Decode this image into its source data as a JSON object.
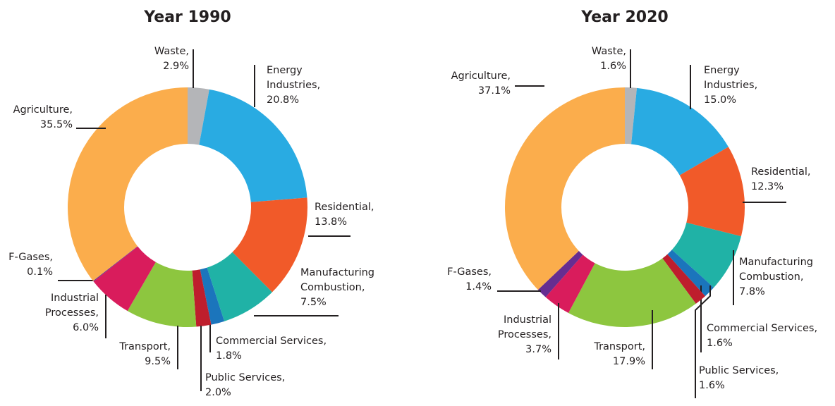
{
  "chart_data": [
    {
      "type": "pie",
      "title": "Year 1990",
      "categories": [
        "Waste,",
        "Energy Industries,",
        "Residential,",
        "Manufacturing Combustion,",
        "Commercial Services,",
        "Public Services,",
        "Transport,",
        "Industrial Processes,",
        "F-Gases,",
        "Agriculture,"
      ],
      "values": [
        2.9,
        20.8,
        13.8,
        7.5,
        1.8,
        2.0,
        9.5,
        6.0,
        0.1,
        35.5
      ],
      "value_labels": [
        "2.9%",
        "20.8%",
        "13.8%",
        "7.5%",
        "1.8%",
        "2.0%",
        "9.5%",
        "6.0%",
        "0.1%",
        "35.5%"
      ],
      "colors": [
        "#b4b5b8",
        "#29abe2",
        "#f15a29",
        "#20b2a6",
        "#1b75bc",
        "#be1e2d",
        "#8dc63f",
        "#d91c5c",
        "#662d91",
        "#fbad4c"
      ]
    },
    {
      "type": "pie",
      "title": "Year 2020",
      "categories": [
        "Waste,",
        "Energy Industries,",
        "Residential,",
        "Manufacturing Combustion,",
        "Commercial Services,",
        "Public Services,",
        "Transport,",
        "Industrial Processes,",
        "F-Gases,",
        "Agriculture,"
      ],
      "values": [
        1.6,
        15.0,
        12.3,
        7.8,
        1.6,
        1.6,
        17.9,
        3.7,
        1.4,
        37.1
      ],
      "value_labels": [
        "1.6%",
        "15.0%",
        "12.3%",
        "7.8%",
        "1.6%",
        "1.6%",
        "17.9%",
        "3.7%",
        "1.4%",
        "37.1%"
      ],
      "colors": [
        "#b4b5b8",
        "#29abe2",
        "#f15a29",
        "#20b2a6",
        "#1b75bc",
        "#be1e2d",
        "#8dc63f",
        "#d91c5c",
        "#662d91",
        "#fbad4c"
      ]
    }
  ]
}
